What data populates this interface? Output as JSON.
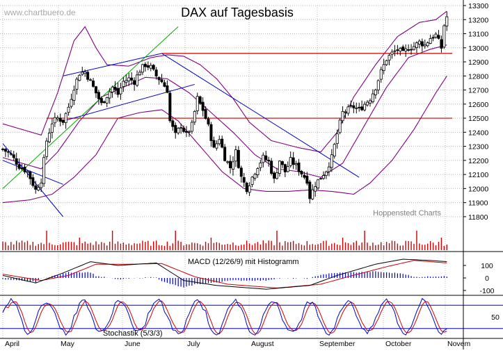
{
  "watermark": "www.chartbuero.de",
  "source": "Hoppenstedt Charts",
  "chart_data": {
    "type": "candlestick",
    "title": "DAX auf Tagesbasis",
    "x_months": [
      "April",
      "May",
      "June",
      "July",
      "August",
      "September",
      "October",
      "Novem"
    ],
    "price_axis": {
      "ylim": [
        11750,
        13300
      ],
      "ticks": [
        13300,
        13200,
        13100,
        13000,
        12900,
        12800,
        12700,
        12600,
        12500,
        12400,
        12300,
        12200,
        12100,
        12000,
        11900,
        11800
      ],
      "tick_labels": [
        "13300",
        "13200",
        "13100",
        "13000",
        "12900",
        "12800",
        "12700",
        "12600",
        "12500",
        "12400",
        "12300",
        "12200",
        "12100",
        "12000",
        "11900",
        "11800"
      ]
    },
    "horizontal_levels": [
      12960,
      12500
    ],
    "close_path": [
      {
        "t": 0,
        "c": 12280
      },
      {
        "t": 3,
        "c": 12240
      },
      {
        "t": 6,
        "c": 12160
      },
      {
        "t": 9,
        "c": 12120
      },
      {
        "t": 12,
        "c": 11990
      },
      {
        "t": 14,
        "c": 12060
      },
      {
        "t": 16,
        "c": 12340
      },
      {
        "t": 18,
        "c": 12470
      },
      {
        "t": 20,
        "c": 12500
      },
      {
        "t": 22,
        "c": 12480
      },
      {
        "t": 24,
        "c": 12580
      },
      {
        "t": 26,
        "c": 12720
      },
      {
        "t": 28,
        "c": 12820
      },
      {
        "t": 30,
        "c": 12830
      },
      {
        "t": 32,
        "c": 12760
      },
      {
        "t": 34,
        "c": 12680
      },
      {
        "t": 36,
        "c": 12600
      },
      {
        "t": 38,
        "c": 12660
      },
      {
        "t": 40,
        "c": 12720
      },
      {
        "t": 42,
        "c": 12670
      },
      {
        "t": 44,
        "c": 12760
      },
      {
        "t": 46,
        "c": 12780
      },
      {
        "t": 48,
        "c": 12760
      },
      {
        "t": 50,
        "c": 12840
      },
      {
        "t": 52,
        "c": 12880
      },
      {
        "t": 54,
        "c": 12860
      },
      {
        "t": 56,
        "c": 12800
      },
      {
        "t": 58,
        "c": 12760
      },
      {
        "t": 60,
        "c": 12700
      },
      {
        "t": 61,
        "c": 12480
      },
      {
        "t": 63,
        "c": 12380
      },
      {
        "t": 65,
        "c": 12450
      },
      {
        "t": 67,
        "c": 12380
      },
      {
        "t": 69,
        "c": 12450
      },
      {
        "t": 71,
        "c": 12640
      },
      {
        "t": 73,
        "c": 12560
      },
      {
        "t": 75,
        "c": 12440
      },
      {
        "t": 77,
        "c": 12280
      },
      {
        "t": 79,
        "c": 12360
      },
      {
        "t": 81,
        "c": 12220
      },
      {
        "t": 83,
        "c": 12150
      },
      {
        "t": 85,
        "c": 12260
      },
      {
        "t": 87,
        "c": 12080
      },
      {
        "t": 89,
        "c": 12000
      },
      {
        "t": 91,
        "c": 12080
      },
      {
        "t": 93,
        "c": 12160
      },
      {
        "t": 95,
        "c": 12220
      },
      {
        "t": 97,
        "c": 12190
      },
      {
        "t": 99,
        "c": 12060
      },
      {
        "t": 101,
        "c": 12200
      },
      {
        "t": 103,
        "c": 12120
      },
      {
        "t": 105,
        "c": 12200
      },
      {
        "t": 107,
        "c": 12160
      },
      {
        "t": 109,
        "c": 12110
      },
      {
        "t": 111,
        "c": 12060
      },
      {
        "t": 112,
        "c": 11940
      },
      {
        "t": 114,
        "c": 12030
      },
      {
        "t": 116,
        "c": 12080
      },
      {
        "t": 118,
        "c": 12130
      },
      {
        "t": 120,
        "c": 12220
      },
      {
        "t": 122,
        "c": 12390
      },
      {
        "t": 124,
        "c": 12540
      },
      {
        "t": 126,
        "c": 12560
      },
      {
        "t": 128,
        "c": 12580
      },
      {
        "t": 130,
        "c": 12560
      },
      {
        "t": 132,
        "c": 12600
      },
      {
        "t": 134,
        "c": 12640
      },
      {
        "t": 136,
        "c": 12720
      },
      {
        "t": 138,
        "c": 12830
      },
      {
        "t": 140,
        "c": 12920
      },
      {
        "t": 142,
        "c": 12960
      },
      {
        "t": 144,
        "c": 12990
      },
      {
        "t": 146,
        "c": 12960
      },
      {
        "t": 148,
        "c": 13000
      },
      {
        "t": 150,
        "c": 13010
      },
      {
        "t": 152,
        "c": 13040
      },
      {
        "t": 154,
        "c": 13020
      },
      {
        "t": 156,
        "c": 13070
      },
      {
        "t": 158,
        "c": 13090
      },
      {
        "t": 160,
        "c": 13000
      },
      {
        "t": 161,
        "c": 13160
      },
      {
        "t": 162,
        "c": 13220
      }
    ],
    "bands_upper": [
      {
        "t": 0,
        "v": 12460
      },
      {
        "t": 14,
        "v": 12380
      },
      {
        "t": 20,
        "v": 12680
      },
      {
        "t": 26,
        "v": 13050
      },
      {
        "t": 30,
        "v": 13150
      },
      {
        "t": 34,
        "v": 13000
      },
      {
        "t": 38,
        "v": 12880
      },
      {
        "t": 46,
        "v": 12870
      },
      {
        "t": 54,
        "v": 12930
      },
      {
        "t": 60,
        "v": 12950
      },
      {
        "t": 66,
        "v": 12940
      },
      {
        "t": 72,
        "v": 12880
      },
      {
        "t": 78,
        "v": 12780
      },
      {
        "t": 84,
        "v": 12640
      },
      {
        "t": 90,
        "v": 12470
      },
      {
        "t": 98,
        "v": 12340
      },
      {
        "t": 108,
        "v": 12290
      },
      {
        "t": 116,
        "v": 12260
      },
      {
        "t": 122,
        "v": 12400
      },
      {
        "t": 128,
        "v": 12650
      },
      {
        "t": 136,
        "v": 12880
      },
      {
        "t": 144,
        "v": 13080
      },
      {
        "t": 152,
        "v": 13180
      },
      {
        "t": 158,
        "v": 13200
      },
      {
        "t": 162,
        "v": 13260
      }
    ],
    "bands_middle": [
      {
        "t": 0,
        "v": 12220
      },
      {
        "t": 14,
        "v": 12140
      },
      {
        "t": 20,
        "v": 12260
      },
      {
        "t": 28,
        "v": 12480
      },
      {
        "t": 36,
        "v": 12650
      },
      {
        "t": 44,
        "v": 12720
      },
      {
        "t": 52,
        "v": 12790
      },
      {
        "t": 60,
        "v": 12780
      },
      {
        "t": 68,
        "v": 12680
      },
      {
        "t": 76,
        "v": 12540
      },
      {
        "t": 84,
        "v": 12400
      },
      {
        "t": 92,
        "v": 12240
      },
      {
        "t": 100,
        "v": 12140
      },
      {
        "t": 108,
        "v": 12120
      },
      {
        "t": 116,
        "v": 12080
      },
      {
        "t": 124,
        "v": 12180
      },
      {
        "t": 132,
        "v": 12450
      },
      {
        "t": 140,
        "v": 12720
      },
      {
        "t": 148,
        "v": 12930
      },
      {
        "t": 156,
        "v": 12990
      },
      {
        "t": 162,
        "v": 13020
      }
    ],
    "bands_lower": [
      {
        "t": 0,
        "v": 11900
      },
      {
        "t": 10,
        "v": 11920
      },
      {
        "t": 18,
        "v": 11960
      },
      {
        "t": 26,
        "v": 12080
      },
      {
        "t": 34,
        "v": 12240
      },
      {
        "t": 42,
        "v": 12500
      },
      {
        "t": 50,
        "v": 12540
      },
      {
        "t": 58,
        "v": 12560
      },
      {
        "t": 64,
        "v": 12480
      },
      {
        "t": 72,
        "v": 12300
      },
      {
        "t": 80,
        "v": 12120
      },
      {
        "t": 88,
        "v": 12000
      },
      {
        "t": 96,
        "v": 11980
      },
      {
        "t": 104,
        "v": 11980
      },
      {
        "t": 112,
        "v": 11990
      },
      {
        "t": 120,
        "v": 11980
      },
      {
        "t": 128,
        "v": 11960
      },
      {
        "t": 134,
        "v": 12040
      },
      {
        "t": 142,
        "v": 12200
      },
      {
        "t": 150,
        "v": 12420
      },
      {
        "t": 158,
        "v": 12680
      },
      {
        "t": 162,
        "v": 12800
      }
    ],
    "trend_lines": [
      {
        "color": "#0000cc",
        "t1": 0,
        "v1": 12320,
        "t2": 22,
        "v2": 11800
      },
      {
        "color": "#0000cc",
        "t1": 0,
        "v1": 12200,
        "t2": 22,
        "v2": 12030
      },
      {
        "color": "#0000cc",
        "t1": 22,
        "v1": 12800,
        "t2": 58,
        "v2": 12960
      },
      {
        "color": "#0000cc",
        "t1": 22,
        "v1": 12480,
        "t2": 70,
        "v2": 12740
      },
      {
        "color": "#0000cc",
        "t1": 58,
        "v1": 12960,
        "t2": 130,
        "v2": 12080
      },
      {
        "color": "#00aa00",
        "t1": 0,
        "v1": 12000,
        "t2": 64,
        "v2": 13150
      }
    ],
    "volume_label": "",
    "macd": {
      "label": "MACD (12/26/9) mit Histogramm",
      "ticks": [
        100,
        0,
        -100
      ],
      "tick_labels": [
        "100",
        "0",
        "-100"
      ],
      "macd_line": [
        {
          "t": 0,
          "v": 20
        },
        {
          "t": 12,
          "v": -40
        },
        {
          "t": 22,
          "v": 40
        },
        {
          "t": 32,
          "v": 130
        },
        {
          "t": 42,
          "v": 100
        },
        {
          "t": 56,
          "v": 120
        },
        {
          "t": 66,
          "v": -20
        },
        {
          "t": 78,
          "v": -60
        },
        {
          "t": 96,
          "v": -90
        },
        {
          "t": 112,
          "v": -60
        },
        {
          "t": 122,
          "v": 20
        },
        {
          "t": 136,
          "v": 110
        },
        {
          "t": 146,
          "v": 150
        },
        {
          "t": 156,
          "v": 140
        },
        {
          "t": 162,
          "v": 130
        }
      ],
      "signal_line": [
        {
          "t": 0,
          "v": 30
        },
        {
          "t": 14,
          "v": -20
        },
        {
          "t": 24,
          "v": 20
        },
        {
          "t": 34,
          "v": 110
        },
        {
          "t": 46,
          "v": 110
        },
        {
          "t": 58,
          "v": 115
        },
        {
          "t": 70,
          "v": 10
        },
        {
          "t": 82,
          "v": -50
        },
        {
          "t": 100,
          "v": -80
        },
        {
          "t": 116,
          "v": -50
        },
        {
          "t": 126,
          "v": 10
        },
        {
          "t": 140,
          "v": 90
        },
        {
          "t": 150,
          "v": 140
        },
        {
          "t": 162,
          "v": 120
        }
      ]
    },
    "stochastic": {
      "label": "Stochastik (5/3/3)",
      "ticks": [
        50
      ],
      "tick_labels": [
        "50"
      ],
      "levels": [
        80,
        20
      ]
    }
  }
}
